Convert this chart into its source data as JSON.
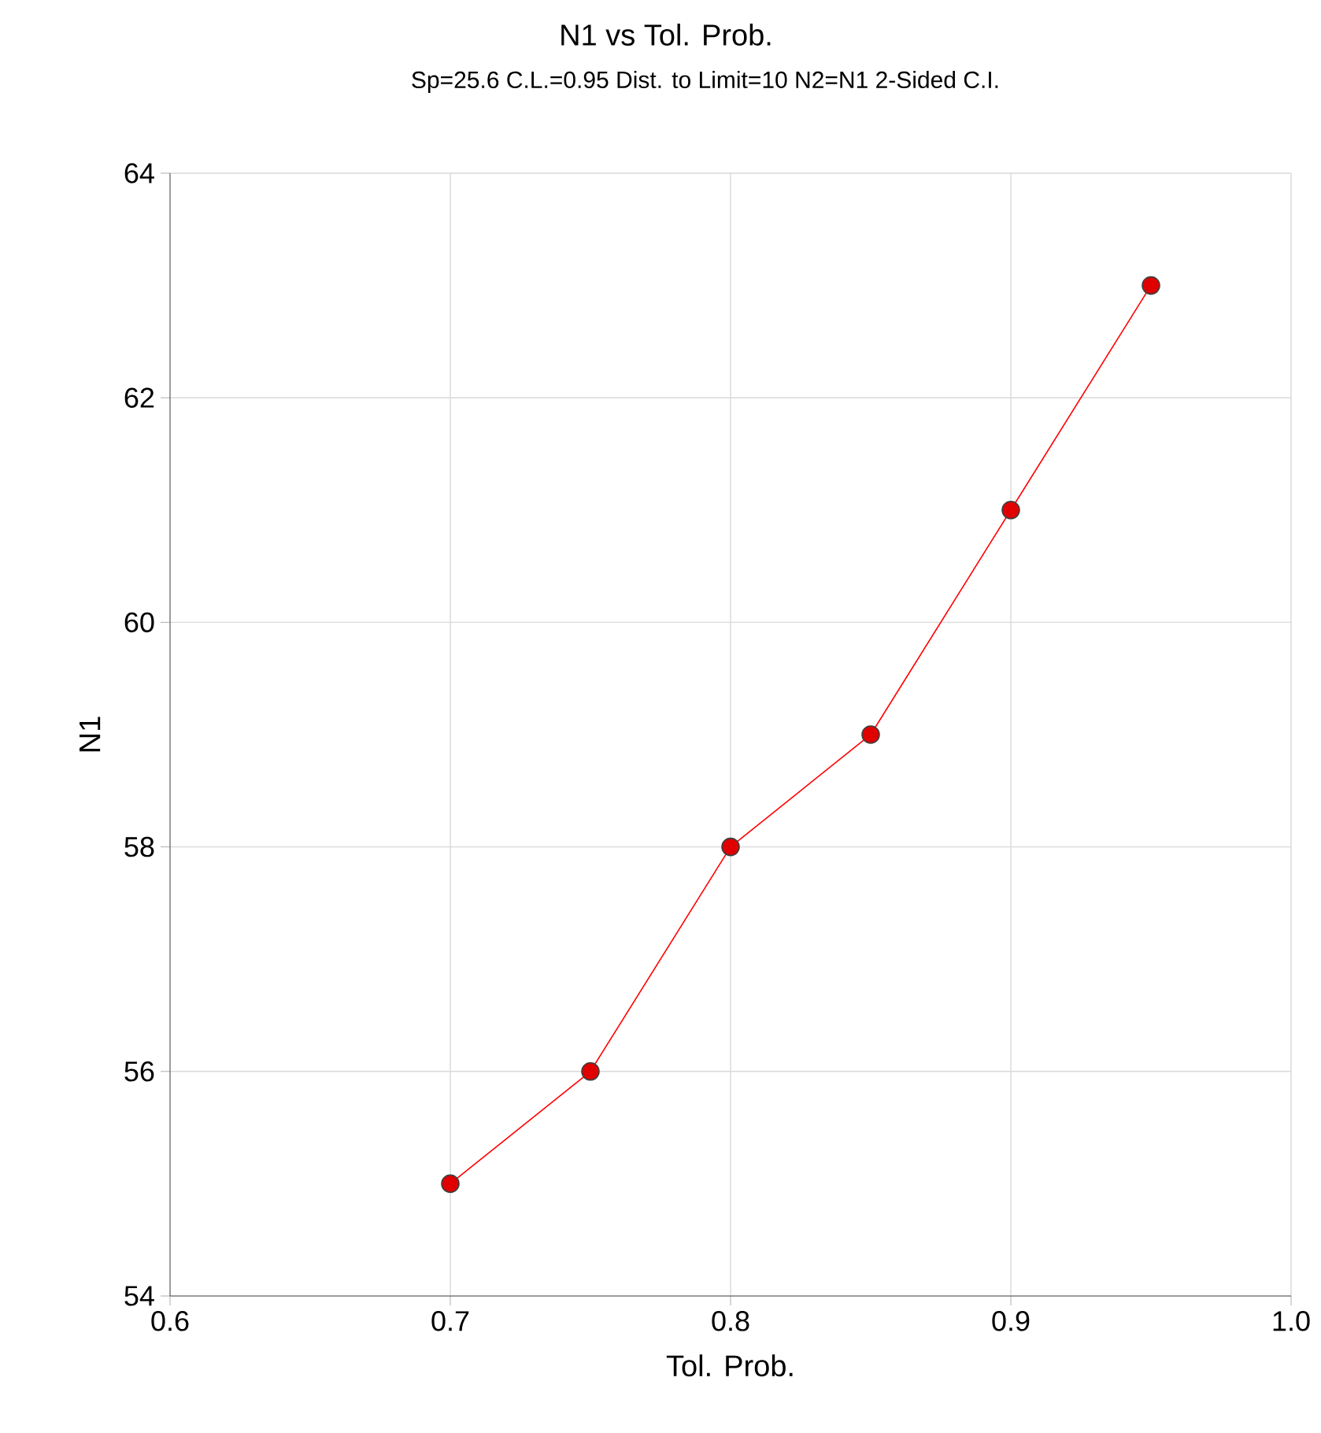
{
  "chart_data": {
    "type": "line",
    "title": "N1 vs Tol. Prob.",
    "subtitle": "Sp=25.6 C.L.=0.95 Dist. to Limit=10 N2=N1 2-Sided C.I.",
    "xlabel": "Tol. Prob.",
    "ylabel": "N1",
    "series": [
      {
        "x": [
          0.7,
          0.75,
          0.8,
          0.85,
          0.9,
          0.95
        ],
        "values": [
          55,
          56,
          58,
          59,
          61,
          63
        ],
        "color": "#ff0000"
      }
    ],
    "xlim": [
      0.6,
      1.0
    ],
    "xticks": [
      0.6,
      0.7,
      0.8,
      0.9,
      {
        "value": 1.0,
        "label": "1.0"
      }
    ],
    "ylim": [
      54,
      64
    ],
    "yticks": [
      54,
      56,
      58,
      60,
      62,
      64
    ],
    "grid": true,
    "marker": "circle",
    "line_style": "solid"
  }
}
